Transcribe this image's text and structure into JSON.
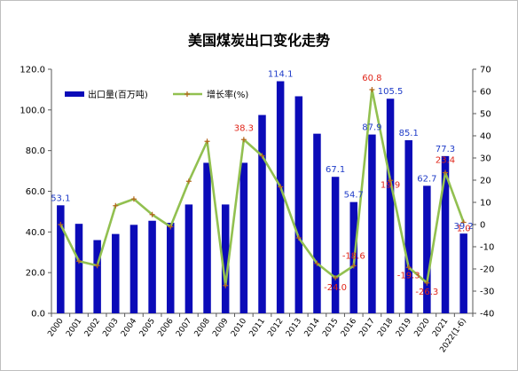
{
  "chart_data": {
    "type": "bar+line",
    "title": "美国煤炭出口变化走势",
    "categories": [
      "2000",
      "2001",
      "2002",
      "2003",
      "2004",
      "2005",
      "2006",
      "2007",
      "2008",
      "2009",
      "2010",
      "2011",
      "2012",
      "2013",
      "2014",
      "2015",
      "2016",
      "2017",
      "2018",
      "2019",
      "2020",
      "2021",
      "2022(1-6)"
    ],
    "series": [
      {
        "name": "出口量(百万吨)",
        "type": "bar",
        "axis": "left",
        "color": "#0b0bb8",
        "values": [
          53.1,
          44.0,
          36.0,
          39.0,
          43.5,
          45.5,
          44.5,
          53.5,
          74.0,
          53.5,
          74.0,
          97.5,
          114.1,
          106.7,
          88.3,
          67.1,
          54.7,
          87.9,
          105.5,
          85.1,
          62.7,
          77.3,
          39.2
        ]
      },
      {
        "name": "增长率(%)",
        "type": "line",
        "axis": "right",
        "color": "#92c050",
        "marker_color": "#b5651d",
        "values": [
          0.0,
          -16.5,
          -18.5,
          8.5,
          11.5,
          4.5,
          -1.0,
          19.5,
          37.5,
          -27.5,
          38.3,
          31.0,
          17.0,
          -6.0,
          -17.5,
          -24.0,
          -18.6,
          60.8,
          19.9,
          -19.3,
          -26.3,
          23.4,
          1.0
        ]
      }
    ],
    "bar_labels": [
      {
        "index": 0,
        "text": "53.1"
      },
      {
        "index": 12,
        "text": "114.1"
      },
      {
        "index": 15,
        "text": "67.1"
      },
      {
        "index": 16,
        "text": "54.7"
      },
      {
        "index": 17,
        "text": "87.9"
      },
      {
        "index": 18,
        "text": "105.5"
      },
      {
        "index": 19,
        "text": "85.1"
      },
      {
        "index": 20,
        "text": "62.7"
      },
      {
        "index": 21,
        "text": "77.3"
      },
      {
        "index": 22,
        "text": "39.2"
      }
    ],
    "line_labels": [
      {
        "index": 10,
        "text": "38.3"
      },
      {
        "index": 15,
        "text": "-24.0"
      },
      {
        "index": 16,
        "text": "-18.6"
      },
      {
        "index": 17,
        "text": "60.8"
      },
      {
        "index": 18,
        "text": "19.9"
      },
      {
        "index": 19,
        "text": "-19.3"
      },
      {
        "index": 20,
        "text": "-26.3"
      },
      {
        "index": 21,
        "text": "23.4"
      },
      {
        "index": 22,
        "text": "1.0"
      }
    ],
    "y_left": {
      "min": 0,
      "max": 120,
      "ticks": [
        "0.0",
        "20.0",
        "40.0",
        "60.0",
        "80.0",
        "100.0",
        "120.0"
      ]
    },
    "y_right": {
      "min": -40,
      "max": 70,
      "ticks": [
        "-40",
        "-30",
        "-20",
        "-10",
        "0",
        "10",
        "20",
        "30",
        "40",
        "50",
        "60",
        "70"
      ]
    },
    "grid": false,
    "legend_position": "top-left"
  }
}
